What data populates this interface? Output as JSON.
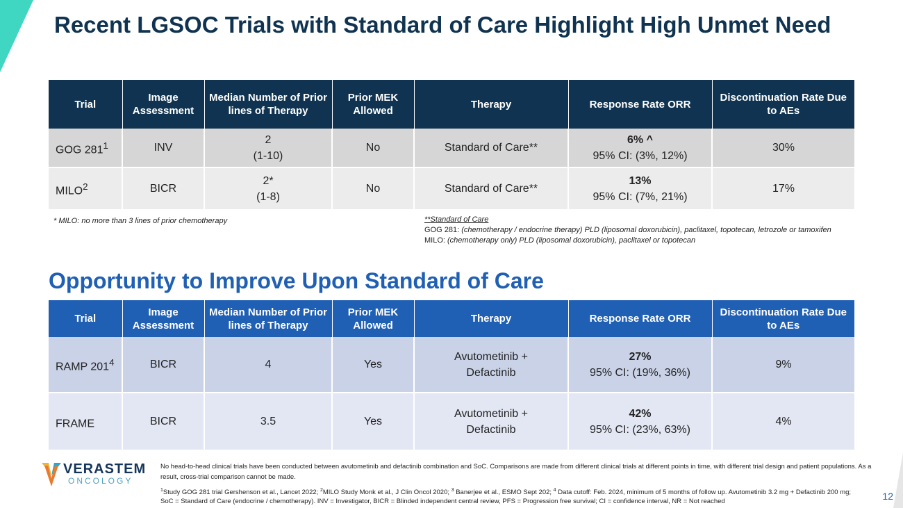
{
  "title": "Recent LGSOC Trials with Standard of Care Highlight High Unmet Need",
  "subtitle": "Opportunity to Improve Upon Standard of Care",
  "colors": {
    "navy": "#0f3350",
    "blue": "#1f5fb4",
    "teal_accent": "#3fd6c2"
  },
  "headers": [
    "Trial",
    "Image Assessment",
    "Median Number of Prior lines of Therapy",
    "Prior MEK Allowed",
    "Therapy",
    "Response Rate ORR",
    "Discontinuation Rate Due to AEs"
  ],
  "soc_table": {
    "rows": [
      {
        "trial": "GOG 281",
        "trial_sup": "1",
        "assessment": "INV",
        "lines_main": "2",
        "lines_range": "(1-10)",
        "mek": "No",
        "therapy": "Standard of Care**",
        "orr_main": "6% ^",
        "orr_ci": "95% CI: (3%, 12%)",
        "disc": "30%"
      },
      {
        "trial": "MILO",
        "trial_sup": "2",
        "assessment": "BICR",
        "lines_main": "2*",
        "lines_range": "(1-8)",
        "mek": "No",
        "therapy": "Standard of Care**",
        "orr_main": "13%",
        "orr_ci": "95% CI: (7%, 21%)",
        "disc": "17%"
      }
    ]
  },
  "notes": {
    "milo": "* MILO: no more than 3 lines of prior chemotherapy",
    "soc_title": "**Standard of Care",
    "gog_label": "GOG 281:",
    "gog_text": "(chemotherapy / endocrine therapy) PLD (liposomal doxorubicin), paclitaxel, topotecan, letrozole or tamoxifen",
    "milo_label": "MILO:",
    "milo_text": "(chemotherapy only) PLD (liposomal doxorubicin), paclitaxel or topotecan"
  },
  "opp_table": {
    "rows": [
      {
        "trial": "RAMP 201",
        "trial_sup": "4",
        "assessment": "BICR",
        "lines": "4",
        "mek": "Yes",
        "therapy_line1": "Avutometinib +",
        "therapy_line2": "Defactinib",
        "orr_main": "27%",
        "orr_ci": "95% CI: (19%, 36%)",
        "disc": "9%"
      },
      {
        "trial": "FRAME",
        "trial_sup": "",
        "assessment": "BICR",
        "lines": "3.5",
        "mek": "Yes",
        "therapy_line1": "Avutometinib +",
        "therapy_line2": "Defactinib",
        "orr_main": "42%",
        "orr_ci": "95% CI: (23%, 63%)",
        "disc": "4%"
      }
    ]
  },
  "logo": {
    "name": "VERASTEM",
    "sub": "ONCOLOGY"
  },
  "footer": {
    "disclaimer": "No head-to-head clinical trials have been conducted between avutometinib and defactinib combination and SoC. Comparisons are made from different clinical trials at different points in time, with different trial design and patient populations. As a result, cross-trial comparison cannot be made.",
    "ref1_sup": "1",
    "ref1": "Study GOG 281 trial Gershenson et al., Lancet 2022; ",
    "ref2_sup": "2",
    "ref2": "MILO Study Monk et al., J Clin Oncol 2020; ",
    "ref3_sup": "3",
    "ref3": " Banerjee et al., ESMO Sept 202; ",
    "ref4_sup": "4",
    "ref4": " Data cutoff: Feb. 2024, minimum of 5 months of follow up.  Avutometinib 3.2 mg + Defactinib 200 mg;",
    "abbrev": "SoC = Standard of Care (endocrine / chemotherapy). INV = Investigator, BICR = Blinded independent central review, PFS =  Progression free survival; CI = confidence interval, NR = Not reached"
  },
  "page_number": "12"
}
